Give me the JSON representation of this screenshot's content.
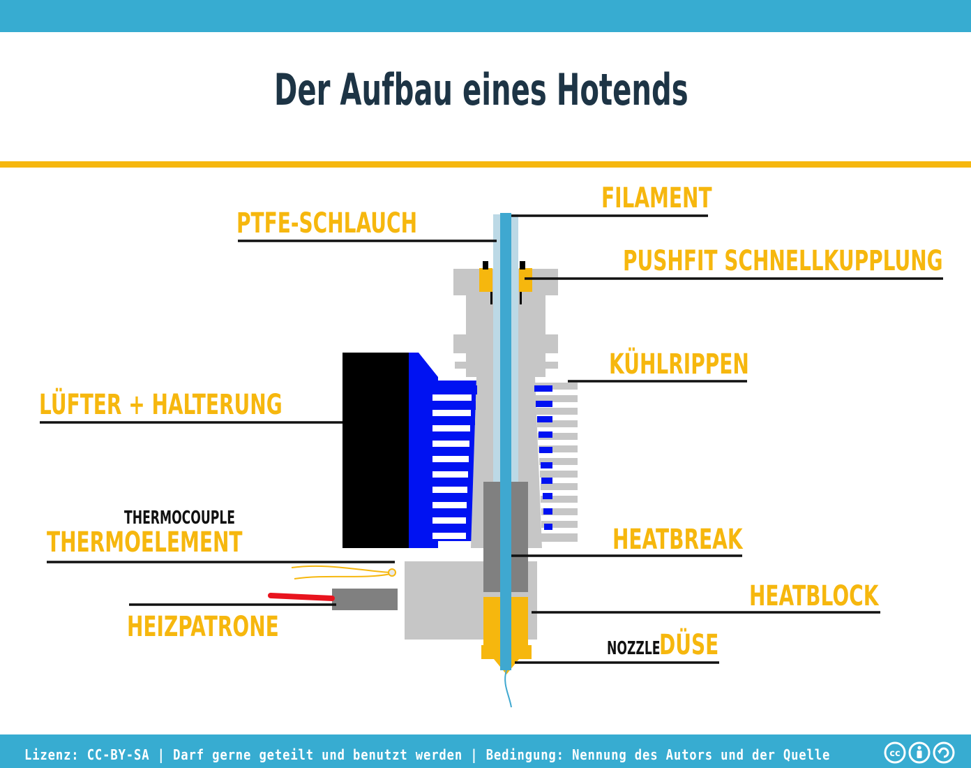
{
  "title": "Der Aufbau eines Hotends",
  "labels": {
    "filament": "FILAMENT",
    "ptfe": "PTFE-SCHLAUCH",
    "pushfit": "PUSHFIT SCHNELLKUPPLUNG",
    "kuehlrippen": "KÜHLRIPPEN",
    "luefter": "LÜFTER + HALTERUNG",
    "thermocouple": "THERMOCOUPLE",
    "thermoelement": "THERMOELEMENT",
    "heatbreak": "HEATBREAK",
    "heatblock": "HEATBLOCK",
    "heizpatrone": "HEIZPATRONE",
    "nozzle": "NOZZLE",
    "duese": "DÜSE"
  },
  "footer": {
    "license_text": "Lizenz: CC-BY-SA | Darf gerne geteilt und benutzt werden | Bedingung: Nennung des Autors und der Quelle",
    "icons": [
      "cc-icon",
      "by-attribution-icon",
      "sa-share-alike-icon"
    ]
  },
  "colors": {
    "accent_blue": "#37acd1",
    "accent_gold": "#f6b70e",
    "title_dark": "#1d3445",
    "heatsink_gray": "#c6c6c6",
    "heatbreak_gray": "#808080",
    "fan_black": "#000000",
    "fan_blue": "#0012f2",
    "filament_blue": "#3fa8d0",
    "ptfe_light": "#bcd9e6",
    "heater_red": "#e8141e"
  }
}
